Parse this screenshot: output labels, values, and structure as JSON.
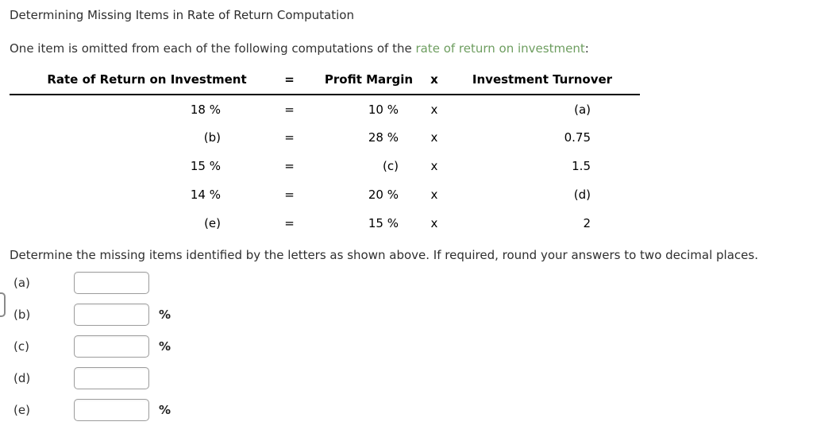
{
  "colors": {
    "link_green": "#6e9e60",
    "body_text": "#333333",
    "table_text": "#000000",
    "input_border": "#9d9d9d"
  },
  "title": "Determining Missing Items in Rate of Return Computation",
  "intro": {
    "prefix": "One item is omitted from each of the following computations of the ",
    "link": "rate of return on investment",
    "suffix": ":"
  },
  "table": {
    "headers": {
      "roi": "Rate of Return on Investment",
      "eq": "=",
      "pm": "Profit Margin",
      "times": "x",
      "it": "Investment Turnover"
    },
    "rows": [
      {
        "roi": "18 %",
        "eq": "=",
        "pm": "10 %",
        "times": "x",
        "it": "(a)"
      },
      {
        "roi": "(b)",
        "eq": "=",
        "pm": "28 %",
        "times": "x",
        "it": "0.75"
      },
      {
        "roi": "15 %",
        "eq": "=",
        "pm": "(c)",
        "times": "x",
        "it": "1.5"
      },
      {
        "roi": "14 %",
        "eq": "=",
        "pm": "20 %",
        "times": "x",
        "it": "(d)"
      },
      {
        "roi": "(e)",
        "eq": "=",
        "pm": "15 %",
        "times": "x",
        "it": "2"
      }
    ]
  },
  "instruction": "Determine the missing items identified by the letters as shown above. If required, round your answers to two decimal places.",
  "answers": [
    {
      "label": "(a)",
      "value": "",
      "suffix": ""
    },
    {
      "label": "(b)",
      "value": "",
      "suffix": "%"
    },
    {
      "label": "(c)",
      "value": "",
      "suffix": "%"
    },
    {
      "label": "(d)",
      "value": "",
      "suffix": ""
    },
    {
      "label": "(e)",
      "value": "",
      "suffix": "%"
    }
  ]
}
